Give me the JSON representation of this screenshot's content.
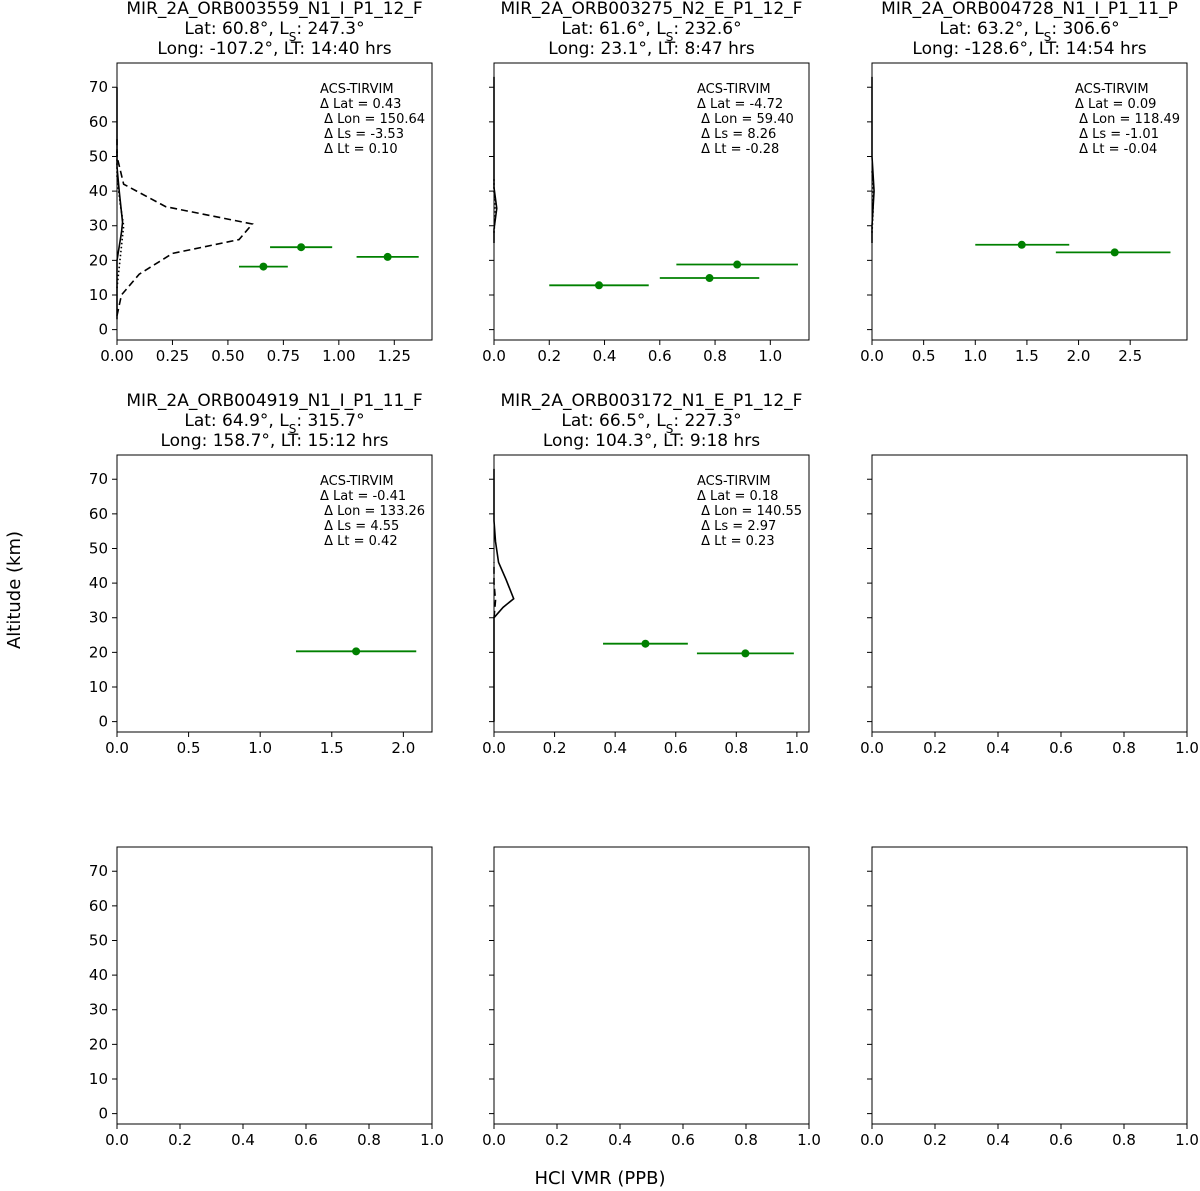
{
  "figure": {
    "ylabel": "Altitude (km)",
    "xlabel": "HCl VMR (PPB)"
  },
  "chart_data": [
    {
      "type": "line",
      "title_lines": [
        "MIR_2A_ORB003559_N1_I_P1_12_F",
        "Lat: 60.8°, L_S: 247.3°",
        "Long: -107.2°, LT: 14:40 hrs"
      ],
      "xlim": [
        0,
        1.42
      ],
      "ylim": [
        -3,
        77
      ],
      "xticks": [
        0,
        0.25,
        0.5,
        0.75,
        1.0,
        1.25
      ],
      "xticklabels": [
        "0.00",
        "0.25",
        "0.50",
        "0.75",
        "1.00",
        "1.25"
      ],
      "yticks": [
        0,
        10,
        20,
        30,
        40,
        50,
        60,
        70
      ],
      "yticklabels": [
        "0",
        "10",
        "20",
        "30",
        "40",
        "50",
        "60",
        "70"
      ],
      "annotation_lines": [
        "ACS-TIRVIM",
        "Δ Lat = 0.43",
        " Δ Lon = 150.64",
        " Δ Ls = -3.53",
        " Δ Lt = 0.10"
      ],
      "series": [
        {
          "style": "solid",
          "color": "#000000",
          "points": [
            [
              0.0,
              3
            ],
            [
              0.0,
              20
            ],
            [
              0.01,
              24
            ],
            [
              0.02,
              28
            ],
            [
              0.025,
              31
            ],
            [
              0.02,
              34
            ],
            [
              0.01,
              40
            ],
            [
              0.0,
              47
            ],
            [
              0.0,
              53
            ],
            [
              0.0,
              70
            ]
          ]
        },
        {
          "style": "dashed",
          "color": "#000000",
          "points": [
            [
              0.0,
              4
            ],
            [
              0.02,
              10
            ],
            [
              0.1,
              16
            ],
            [
              0.25,
              22
            ],
            [
              0.55,
              26
            ],
            [
              0.61,
              30.5
            ],
            [
              0.22,
              35.5
            ],
            [
              0.03,
              42
            ],
            [
              0.0,
              50
            ],
            [
              0.0,
              55
            ]
          ]
        },
        {
          "style": "dotted",
          "color": "#000000",
          "points": [
            [
              0.0,
              12
            ],
            [
              0.01,
              18
            ],
            [
              0.02,
              24
            ],
            [
              0.03,
              30
            ],
            [
              0.015,
              36
            ],
            [
              0.0,
              44
            ],
            [
              0.0,
              52
            ]
          ]
        }
      ],
      "points": [
        {
          "x": 0.66,
          "y": 18.2,
          "xerr": [
            0.55,
            0.77
          ],
          "color": "#008000"
        },
        {
          "x": 0.83,
          "y": 23.8,
          "xerr": [
            0.69,
            0.97
          ],
          "color": "#008000"
        },
        {
          "x": 1.22,
          "y": 21.0,
          "xerr": [
            1.08,
            1.36
          ],
          "color": "#008000"
        }
      ]
    },
    {
      "type": "line",
      "title_lines": [
        "MIR_2A_ORB003275_N2_E_P1_12_F",
        "Lat: 61.6°, L_S: 232.6°",
        "Long: 23.1°, LT: 8:47 hrs"
      ],
      "xlim": [
        0,
        1.14
      ],
      "ylim": [
        -3,
        77
      ],
      "xticks": [
        0,
        0.2,
        0.4,
        0.6,
        0.8,
        1.0
      ],
      "xticklabels": [
        "0.0",
        "0.2",
        "0.4",
        "0.6",
        "0.8",
        "1.0"
      ],
      "yticks": [
        0,
        10,
        20,
        30,
        40,
        50,
        60,
        70
      ],
      "yticklabels": [],
      "annotation_lines": [
        "ACS-TIRVIM",
        "Δ Lat = -4.72",
        " Δ Lon = 59.40",
        " Δ Ls = 8.26",
        " Δ Lt = -0.28"
      ],
      "series": [
        {
          "style": "solid",
          "color": "#000000",
          "points": [
            [
              0.0,
              25
            ],
            [
              0.0,
              29
            ],
            [
              0.005,
              32
            ],
            [
              0.01,
              35
            ],
            [
              0.005,
              38
            ],
            [
              0.0,
              41
            ],
            [
              0.0,
              73
            ]
          ]
        },
        {
          "style": "dotted",
          "color": "#000000",
          "points": [
            [
              0.0,
              28
            ],
            [
              0.005,
              34
            ],
            [
              0.0,
              40
            ],
            [
              0.0,
              44
            ]
          ]
        }
      ],
      "points": [
        {
          "x": 0.38,
          "y": 12.8,
          "xerr": [
            0.2,
            0.56
          ],
          "color": "#008000"
        },
        {
          "x": 0.78,
          "y": 14.9,
          "xerr": [
            0.6,
            0.96
          ],
          "color": "#008000"
        },
        {
          "x": 0.88,
          "y": 18.8,
          "xerr": [
            0.66,
            1.1
          ],
          "color": "#008000"
        }
      ]
    },
    {
      "type": "line",
      "title_lines": [
        "MIR_2A_ORB004728_N1_I_P1_11_P",
        "Lat: 63.2°, L_S: 306.6°",
        "Long: -128.6°, LT: 14:54 hrs"
      ],
      "xlim": [
        0,
        3.05
      ],
      "ylim": [
        -3,
        77
      ],
      "xticks": [
        0,
        0.5,
        1.0,
        1.5,
        2.0,
        2.5
      ],
      "xticklabels": [
        "0.0",
        "0.5",
        "1.0",
        "1.5",
        "2.0",
        "2.5"
      ],
      "yticks": [
        0,
        10,
        20,
        30,
        40,
        50,
        60,
        70
      ],
      "yticklabels": [],
      "annotation_lines": [
        "ACS-TIRVIM",
        "Δ Lat = 0.09",
        " Δ Lon = 118.49",
        " Δ Ls = -1.01",
        " Δ Lt = -0.04"
      ],
      "series": [
        {
          "style": "solid",
          "color": "#000000",
          "points": [
            [
              0.0,
              25
            ],
            [
              0.0,
              30
            ],
            [
              0.01,
              35
            ],
            [
              0.02,
              40
            ],
            [
              0.01,
              45
            ],
            [
              0.0,
              50
            ],
            [
              0.0,
              73
            ]
          ]
        },
        {
          "style": "dotted",
          "color": "#000000",
          "points": [
            [
              0.0,
              28
            ],
            [
              0.01,
              34
            ],
            [
              0.01,
              40
            ],
            [
              0.0,
              46
            ]
          ]
        }
      ],
      "points": [
        {
          "x": 1.45,
          "y": 24.5,
          "xerr": [
            1.0,
            1.91
          ],
          "color": "#008000"
        },
        {
          "x": 2.35,
          "y": 22.3,
          "xerr": [
            1.78,
            2.89
          ],
          "color": "#008000"
        }
      ]
    },
    {
      "type": "line",
      "title_lines": [
        "MIR_2A_ORB004919_N1_I_P1_11_F",
        "Lat: 64.9°, L_S: 315.7°",
        "Long: 158.7°, LT: 15:12 hrs"
      ],
      "xlim": [
        0,
        2.2
      ],
      "ylim": [
        -3,
        77
      ],
      "xticks": [
        0,
        0.5,
        1.0,
        1.5,
        2.0
      ],
      "xticklabels": [
        "0.0",
        "0.5",
        "1.0",
        "1.5",
        "2.0"
      ],
      "yticks": [
        0,
        10,
        20,
        30,
        40,
        50,
        60,
        70
      ],
      "yticklabels": [
        "0",
        "10",
        "20",
        "30",
        "40",
        "50",
        "60",
        "70"
      ],
      "annotation_lines": [
        "ACS-TIRVIM",
        "Δ Lat = -0.41",
        " Δ Lon = 133.26",
        " Δ Ls = 4.55",
        " Δ Lt = 0.42"
      ],
      "series": [],
      "points": [
        {
          "x": 1.67,
          "y": 20.3,
          "xerr": [
            1.25,
            2.09
          ],
          "color": "#008000"
        }
      ]
    },
    {
      "type": "line",
      "title_lines": [
        "MIR_2A_ORB003172_N1_E_P1_12_F",
        "Lat: 66.5°, L_S: 227.3°",
        "Long: 104.3°, LT: 9:18 hrs"
      ],
      "xlim": [
        0,
        1.04
      ],
      "ylim": [
        -3,
        77
      ],
      "xticks": [
        0,
        0.2,
        0.4,
        0.6,
        0.8,
        1.0
      ],
      "xticklabels": [
        "0.0",
        "0.2",
        "0.4",
        "0.6",
        "0.8",
        "1.0"
      ],
      "yticks": [
        0,
        10,
        20,
        30,
        40,
        50,
        60,
        70
      ],
      "yticklabels": [],
      "annotation_lines": [
        "ACS-TIRVIM",
        "Δ Lat = 0.18",
        " Δ Lon = 140.55",
        " Δ Ls = 2.97",
        " Δ Lt = 0.23"
      ],
      "series": [
        {
          "style": "solid",
          "color": "#000000",
          "points": [
            [
              0.0,
              0
            ],
            [
              0.0,
              30
            ],
            [
              0.03,
              33
            ],
            [
              0.065,
              35.5
            ],
            [
              0.04,
              41
            ],
            [
              0.015,
              46
            ],
            [
              0.005,
              52
            ],
            [
              0.0,
              58
            ],
            [
              0.0,
              73
            ]
          ]
        },
        {
          "style": "dashed",
          "color": "#000000",
          "points": [
            [
              0.0,
              30
            ],
            [
              0.005,
              35
            ],
            [
              0.0,
              40
            ],
            [
              0.0,
              46
            ]
          ]
        }
      ],
      "points": [
        {
          "x": 0.5,
          "y": 22.5,
          "xerr": [
            0.36,
            0.64
          ],
          "color": "#008000"
        },
        {
          "x": 0.83,
          "y": 19.7,
          "xerr": [
            0.67,
            0.99
          ],
          "color": "#008000"
        }
      ]
    },
    {
      "type": "line",
      "title_lines": [],
      "xlim": [
        0,
        1.0
      ],
      "ylim": [
        -3,
        77
      ],
      "xticks": [
        0,
        0.2,
        0.4,
        0.6,
        0.8,
        1.0
      ],
      "xticklabels": [
        "0.0",
        "0.2",
        "0.4",
        "0.6",
        "0.8",
        "1.0"
      ],
      "yticks": [
        0,
        10,
        20,
        30,
        40,
        50,
        60,
        70
      ],
      "yticklabels": [],
      "annotation_lines": [],
      "series": [],
      "points": []
    },
    {
      "type": "line",
      "title_lines": [],
      "xlim": [
        0,
        1.0
      ],
      "ylim": [
        -3,
        77
      ],
      "xticks": [
        0,
        0.2,
        0.4,
        0.6,
        0.8,
        1.0
      ],
      "xticklabels": [
        "0.0",
        "0.2",
        "0.4",
        "0.6",
        "0.8",
        "1.0"
      ],
      "yticks": [
        0,
        10,
        20,
        30,
        40,
        50,
        60,
        70
      ],
      "yticklabels": [
        "0",
        "10",
        "20",
        "30",
        "40",
        "50",
        "60",
        "70"
      ],
      "annotation_lines": [],
      "series": [],
      "points": []
    },
    {
      "type": "line",
      "title_lines": [],
      "xlim": [
        0,
        1.0
      ],
      "ylim": [
        -3,
        77
      ],
      "xticks": [
        0,
        0.2,
        0.4,
        0.6,
        0.8,
        1.0
      ],
      "xticklabels": [
        "0.0",
        "0.2",
        "0.4",
        "0.6",
        "0.8",
        "1.0"
      ],
      "yticks": [
        0,
        10,
        20,
        30,
        40,
        50,
        60,
        70
      ],
      "yticklabels": [],
      "annotation_lines": [],
      "series": [],
      "points": []
    },
    {
      "type": "line",
      "title_lines": [],
      "xlim": [
        0,
        1.0
      ],
      "ylim": [
        -3,
        77
      ],
      "xticks": [
        0,
        0.2,
        0.4,
        0.6,
        0.8,
        1.0
      ],
      "xticklabels": [
        "0.0",
        "0.2",
        "0.4",
        "0.6",
        "0.8",
        "1.0"
      ],
      "yticks": [
        0,
        10,
        20,
        30,
        40,
        50,
        60,
        70
      ],
      "yticklabels": [],
      "annotation_lines": [],
      "series": [],
      "points": []
    }
  ]
}
